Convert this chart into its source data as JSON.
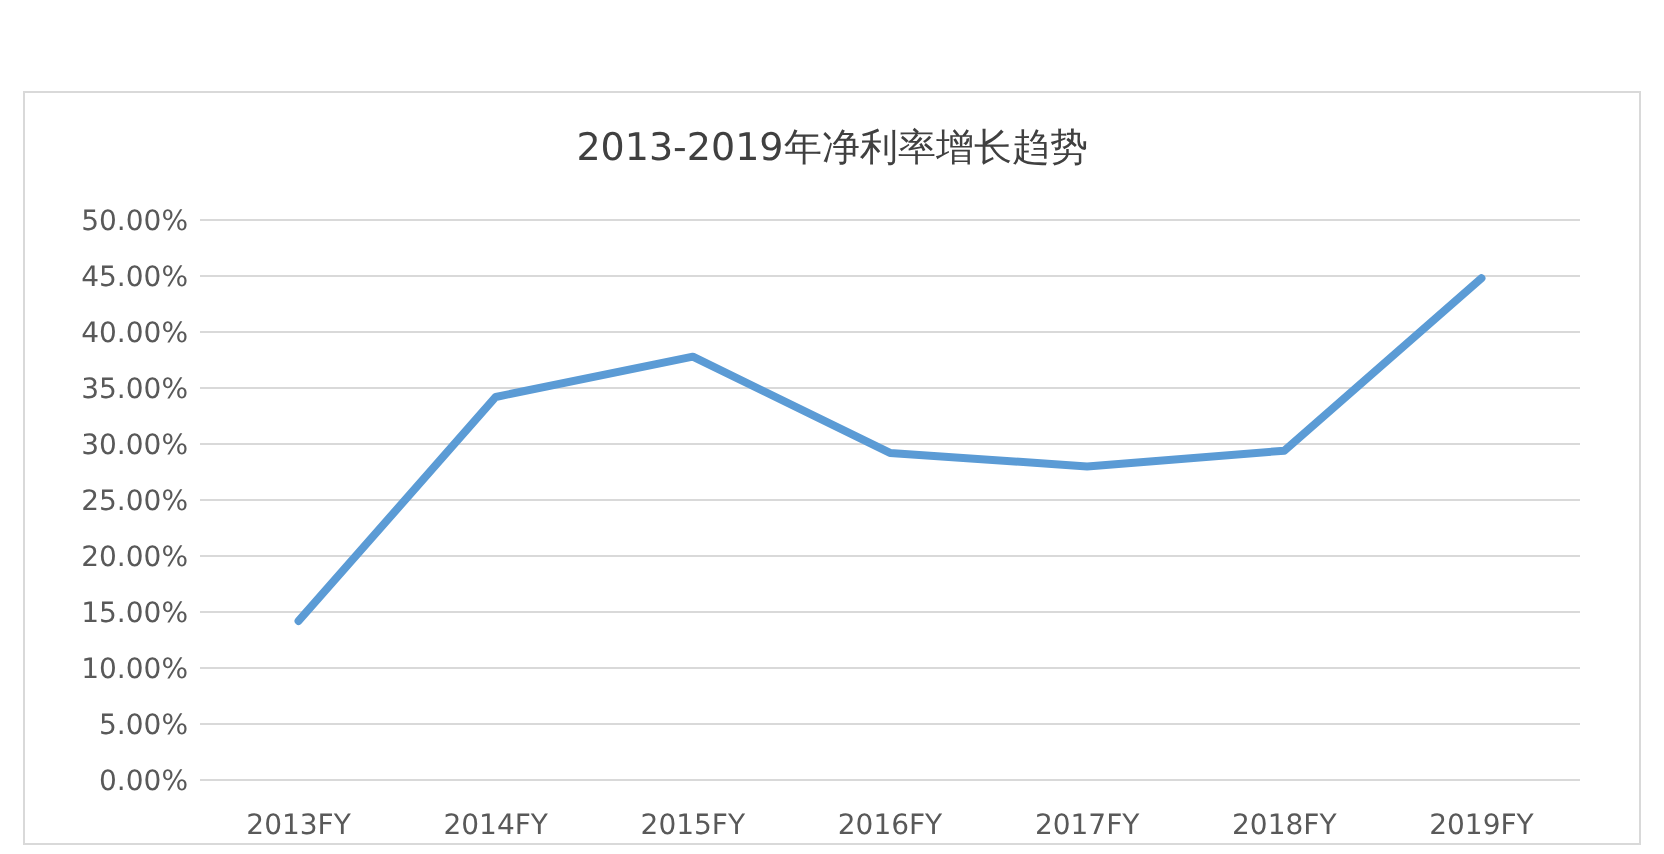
{
  "chart_data": {
    "type": "line",
    "title": "2013-2019年净利率增长趋势",
    "categories": [
      "2013FY",
      "2014FY",
      "2015FY",
      "2016FY",
      "2017FY",
      "2018FY",
      "2019FY"
    ],
    "series": [
      {
        "color": "#5b9bd5",
        "values": [
          14.2,
          34.2,
          37.8,
          29.2,
          28.0,
          29.4,
          44.8
        ]
      }
    ],
    "ylim": [
      0,
      50
    ],
    "yticks": [
      {
        "value": 0,
        "label": "0.00%"
      },
      {
        "value": 5,
        "label": "5.00%"
      },
      {
        "value": 10,
        "label": "10.00%"
      },
      {
        "value": 15,
        "label": "15.00%"
      },
      {
        "value": 20,
        "label": "20.00%"
      },
      {
        "value": 25,
        "label": "25.00%"
      },
      {
        "value": 30,
        "label": "30.00%"
      },
      {
        "value": 35,
        "label": "35.00%"
      },
      {
        "value": 40,
        "label": "40.00%"
      },
      {
        "value": 45,
        "label": "45.00%"
      },
      {
        "value": 50,
        "label": "50.00%"
      }
    ],
    "grid": "y",
    "line_style": "solid"
  }
}
